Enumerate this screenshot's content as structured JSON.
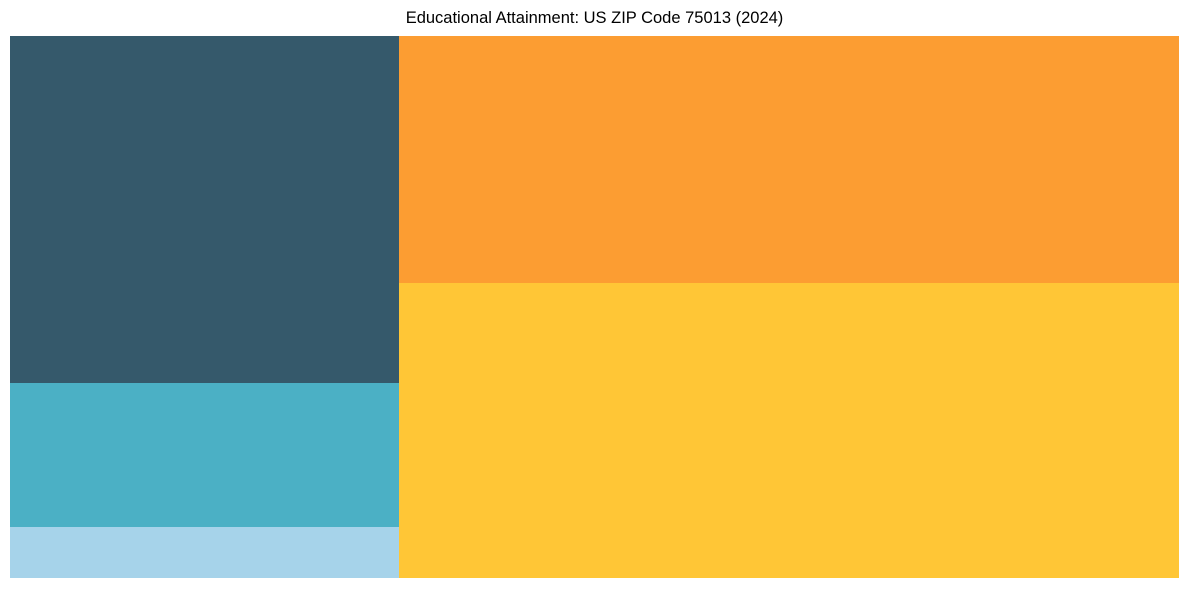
{
  "chart_data": {
    "type": "treemap",
    "title": "Educational Attainment: US ZIP Code 75013 (2024)",
    "labels_visible": false,
    "legend": "none",
    "background_color": "#ffffff",
    "title_color": "#000000",
    "segments": [
      {
        "id": "tile-yellow",
        "color": "#ffc636",
        "area_share_pct": 36.3,
        "column": "right",
        "row_in_column": 2
      },
      {
        "id": "tile-orange",
        "color": "#fc9d32",
        "area_share_pct": 30.4,
        "column": "right",
        "row_in_column": 1
      },
      {
        "id": "tile-dark-slate",
        "color": "#35596b",
        "area_share_pct": 21.3,
        "column": "left",
        "row_in_column": 1
      },
      {
        "id": "tile-teal",
        "color": "#4bb0c5",
        "area_share_pct": 8.9,
        "column": "left",
        "row_in_column": 2
      },
      {
        "id": "tile-light-blue",
        "color": "#a6d3ea",
        "area_share_pct": 3.1,
        "column": "left",
        "row_in_column": 3
      }
    ]
  }
}
